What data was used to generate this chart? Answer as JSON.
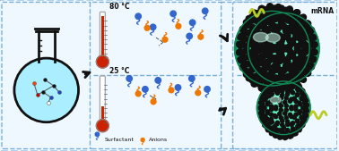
{
  "bg_color": "#f0f8ff",
  "border_color": "#7ab0d8",
  "flask_fill": "#aaeeff",
  "flask_outline": "#111111",
  "arrow_color": "#111111",
  "thermo_red": "#cc2200",
  "thermo_gray": "#aaaaaa",
  "surfactant_color": "#3366cc",
  "anion_color": "#ee7700",
  "sphere_green_light": "#44ddaa",
  "sphere_green_mid": "#22bb77",
  "sphere_green_dark": "#118855",
  "dot_color": "#111111",
  "mrna_color": "#bbcc22",
  "temp_high": "80 °C",
  "temp_low": "25 °C",
  "legend_surfactant": "Surfactant",
  "legend_anion": "Anions",
  "legend_mrna": "mRNA"
}
